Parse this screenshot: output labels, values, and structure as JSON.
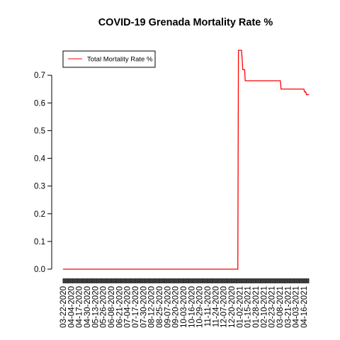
{
  "chart_data": {
    "type": "line",
    "title": "COVID-19 Grenada Mortality Rate %",
    "xlabel": "",
    "ylabel": "",
    "ylim": [
      0,
      0.79
    ],
    "yticks": [
      "0.0",
      "0.1",
      "0.2",
      "0.3",
      "0.4",
      "0.5",
      "0.6",
      "0.7"
    ],
    "grid": false,
    "legend": {
      "position": "top-left",
      "entries": [
        "Total Mortality Rate %"
      ]
    },
    "colors": {
      "series": "#ff0000",
      "axis": "#000000",
      "tickmarks": "#333333"
    },
    "x_tick_labels": [
      "03-22-2020",
      "04-04-2020",
      "04-17-2020",
      "04-30-2020",
      "05-13-2020",
      "05-26-2020",
      "06-08-2020",
      "06-21-2020",
      "07-04-2020",
      "07-17-2020",
      "07-30-2020",
      "08-12-2020",
      "08-25-2020",
      "09-07-2020",
      "09-20-2020",
      "10-03-2020",
      "10-16-2020",
      "10-29-2020",
      "11-11-2020",
      "11-24-2020",
      "12-07-2020",
      "12-20-2020",
      "01-02-2021",
      "01-15-2021",
      "01-28-2021",
      "02-10-2021",
      "02-23-2021",
      "03-08-2021",
      "03-21-2021",
      "04-03-2021",
      "04-16-2021"
    ],
    "x_range": [
      "03-22-2020",
      "04-24-2021"
    ],
    "series": [
      {
        "name": "Total Mortality Rate %",
        "points": [
          [
            "03-22-2020",
            0.0
          ],
          [
            "12-30-2020",
            0.0
          ],
          [
            "12-31-2020",
            0.79
          ],
          [
            "01-05-2021",
            0.79
          ],
          [
            "01-06-2021",
            0.76
          ],
          [
            "01-07-2021",
            0.72
          ],
          [
            "01-10-2021",
            0.72
          ],
          [
            "01-11-2021",
            0.68
          ],
          [
            "03-09-2021",
            0.68
          ],
          [
            "03-10-2021",
            0.65
          ],
          [
            "04-16-2021",
            0.65
          ],
          [
            "04-17-2021",
            0.64
          ],
          [
            "04-19-2021",
            0.64
          ],
          [
            "04-20-2021",
            0.63
          ],
          [
            "04-24-2021",
            0.63
          ]
        ]
      }
    ]
  }
}
